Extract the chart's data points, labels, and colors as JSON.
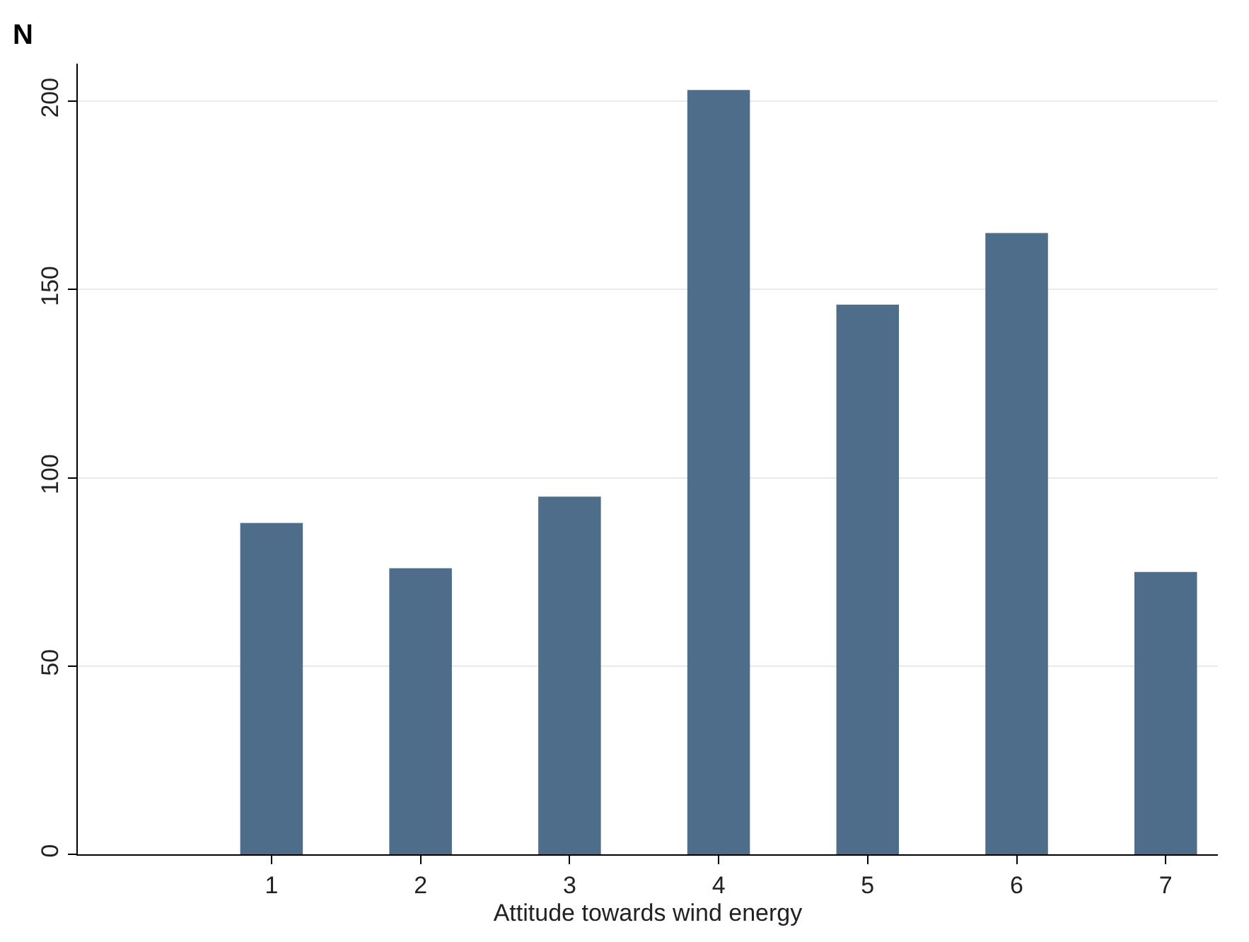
{
  "chart_data": {
    "type": "bar",
    "ylabel": "N",
    "xlabel": "Attitude towards wind energy",
    "x": [
      1,
      2,
      3,
      4,
      5,
      6,
      7
    ],
    "values": [
      88,
      76,
      95,
      203,
      146,
      165,
      75
    ],
    "color": "#4e6d8a",
    "xlim": [
      -0.3,
      7.35
    ],
    "xticks": [
      1,
      2,
      3,
      4,
      5,
      6,
      7
    ],
    "ylim": [
      0,
      210
    ],
    "yticks": [
      0,
      50,
      100,
      150,
      200
    ],
    "grid": "y",
    "legend": false
  }
}
